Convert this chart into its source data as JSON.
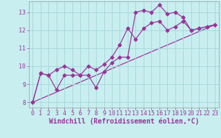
{
  "xlabel": "Windchill (Refroidissement éolien,°C)",
  "background_color": "#c8eef0",
  "line_color": "#993399",
  "grid_color": "#a8d8da",
  "xlim": [
    -0.5,
    23.5
  ],
  "ylim": [
    7.7,
    13.6
  ],
  "yticks": [
    8,
    9,
    10,
    11,
    12,
    13
  ],
  "xticks": [
    0,
    1,
    2,
    3,
    4,
    5,
    6,
    7,
    8,
    9,
    10,
    11,
    12,
    13,
    14,
    15,
    16,
    17,
    18,
    19,
    20,
    21,
    22,
    23
  ],
  "line1_x": [
    0,
    1,
    2,
    3,
    4,
    5,
    6,
    7,
    8,
    9,
    10,
    11,
    12,
    13,
    14,
    15,
    16,
    17,
    18,
    19,
    20,
    21,
    22,
    23
  ],
  "line1_y": [
    8.0,
    9.6,
    9.5,
    8.7,
    9.5,
    9.5,
    9.5,
    9.5,
    8.8,
    9.7,
    10.2,
    10.5,
    10.5,
    13.0,
    13.1,
    13.0,
    13.4,
    12.9,
    13.0,
    12.7,
    12.0,
    12.1,
    12.2,
    12.3
  ],
  "line2_x": [
    0,
    1,
    2,
    3,
    4,
    5,
    6,
    7,
    8,
    9,
    10,
    11,
    12,
    13,
    14,
    15,
    16,
    17,
    18,
    19,
    20,
    21,
    22,
    23
  ],
  "line2_y": [
    8.0,
    9.6,
    9.5,
    9.8,
    10.0,
    9.8,
    9.5,
    10.0,
    9.8,
    10.1,
    10.5,
    11.2,
    12.1,
    11.5,
    12.1,
    12.4,
    12.5,
    12.0,
    12.2,
    12.5,
    12.0,
    12.1,
    12.2,
    12.3
  ],
  "line3_x": [
    0,
    23
  ],
  "line3_y": [
    8.0,
    12.3
  ],
  "tick_fontsize": 6,
  "label_fontsize": 7
}
